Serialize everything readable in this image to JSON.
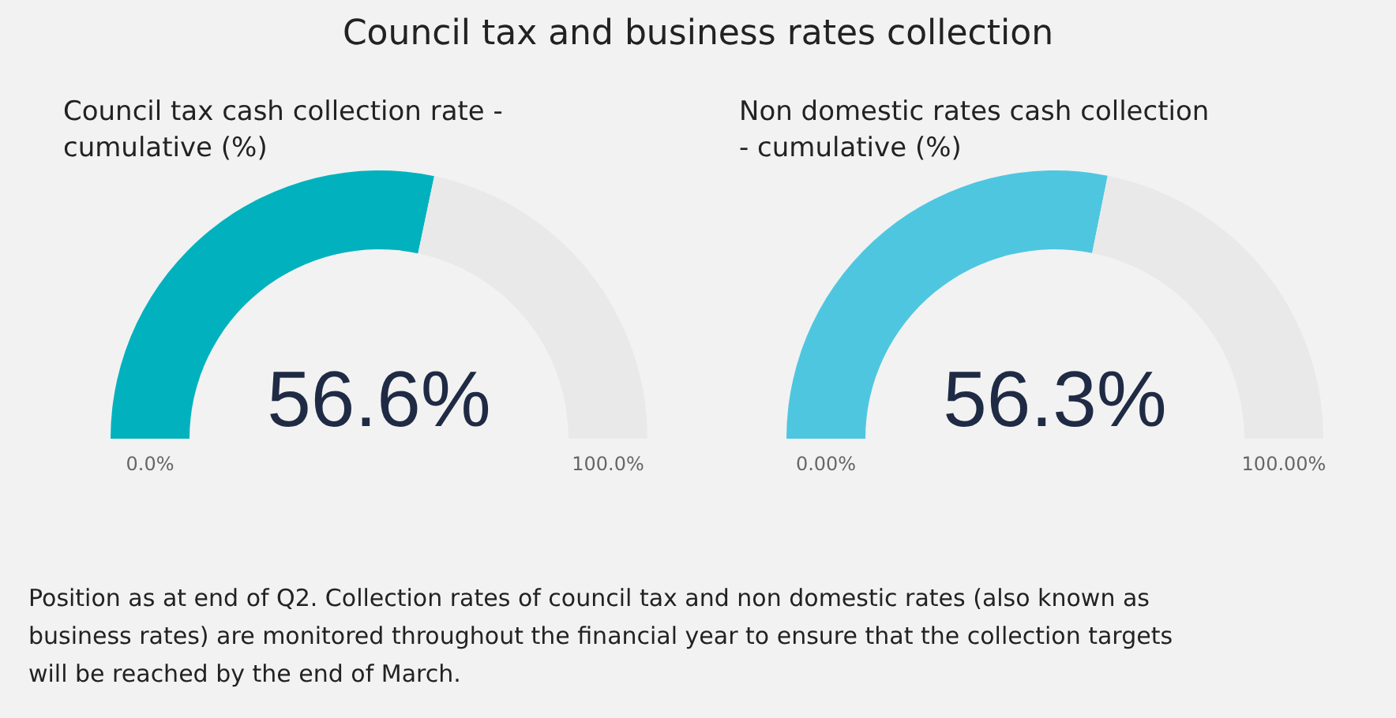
{
  "chart_data": [
    {
      "type": "other",
      "title": "Council tax and business rates collection",
      "annotations": [
        "Position as at end of Q2. Collection rates of council tax and non domestic rates (also known as business rates) are monitored throughout the financial year to ensure that the collection targets will be reached by the end of March."
      ]
    },
    {
      "type": "donut",
      "title": "Council tax cash collection rate - cumulative (%)",
      "categories": [
        null,
        null
      ],
      "values": [
        56.6,
        43.4
      ],
      "colors": [
        "#01b2be",
        "#e9e9e9"
      ],
      "value_labels": [
        "56.6%",
        null
      ],
      "annotations": [
        "0.0%",
        "100.0%"
      ]
    },
    {
      "type": "donut",
      "title": "Non domestic rates cash collection - cumulative (%)",
      "categories": [
        null,
        null
      ],
      "values": [
        56.3,
        43.7
      ],
      "colors": [
        "#4fc6e0",
        "#e9e9e9"
      ],
      "value_labels": [
        "56.3%",
        null
      ],
      "annotations": [
        "0.00%",
        "100.00%"
      ]
    }
  ]
}
